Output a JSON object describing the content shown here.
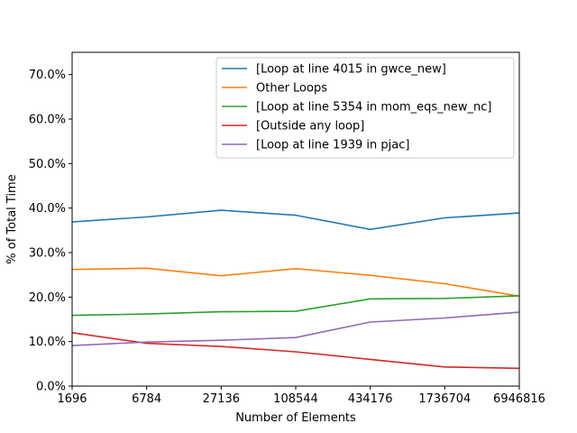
{
  "chart_data": {
    "type": "line",
    "title": "",
    "xlabel": "Number of Elements",
    "ylabel": "% of Total Time",
    "categories": [
      "1696",
      "6784",
      "27136",
      "108544",
      "434176",
      "1736704",
      "6946816"
    ],
    "ylim": [
      0,
      75
    ],
    "yticks": [
      {
        "value": 0,
        "label": "0.0%"
      },
      {
        "value": 10,
        "label": "10.0%"
      },
      {
        "value": 20,
        "label": "20.0%"
      },
      {
        "value": 30,
        "label": "30.0%"
      },
      {
        "value": 40,
        "label": "40.0%"
      },
      {
        "value": 50,
        "label": "50.0%"
      },
      {
        "value": 60,
        "label": "60.0%"
      },
      {
        "value": 70,
        "label": "70.0%"
      }
    ],
    "grid": false,
    "legend_position": "top-right",
    "series": [
      {
        "name": "[Loop at line 4015 in gwce_new]",
        "color": "#1f77b4",
        "values": [
          36.9,
          38.0,
          39.5,
          38.4,
          35.2,
          37.8,
          38.9
        ]
      },
      {
        "name": "Other Loops",
        "color": "#ff7f0e",
        "values": [
          26.2,
          26.5,
          24.8,
          26.4,
          24.9,
          23.0,
          20.2
        ]
      },
      {
        "name": "[Loop at line 5354 in mom_eqs_new_nc]",
        "color": "#2ca02c",
        "values": [
          15.9,
          16.2,
          16.7,
          16.8,
          19.6,
          19.7,
          20.3
        ]
      },
      {
        "name": "[Outside any loop]",
        "color": "#d62728",
        "values": [
          12.0,
          9.6,
          8.9,
          7.7,
          6.0,
          4.3,
          4.0
        ]
      },
      {
        "name": "[Loop at line 1939 in pjac]",
        "color": "#9467bd",
        "values": [
          9.1,
          9.9,
          10.3,
          10.9,
          14.4,
          15.3,
          16.6
        ]
      }
    ]
  }
}
